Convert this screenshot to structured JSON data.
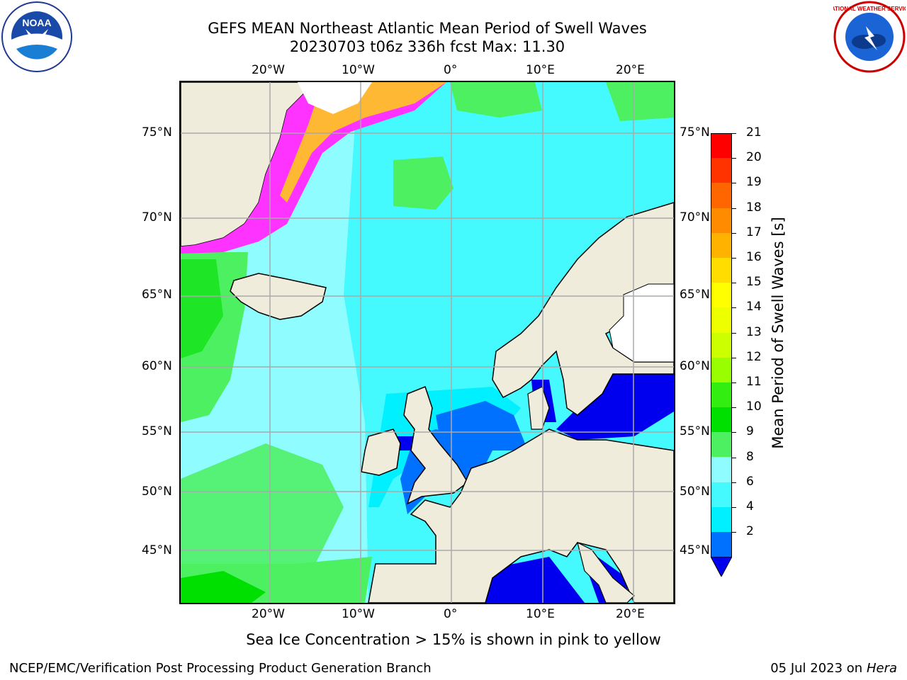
{
  "title": {
    "line1": "GEFS MEAN Northeast Atlantic Mean Period of Swell Waves",
    "line2": "20230703 t06z 336h fcst   Max: 11.30"
  },
  "logos": {
    "left": {
      "icon": "noaa-logo-icon",
      "text": "NOAA"
    },
    "right": {
      "icon": "nws-logo-icon",
      "text": "NATIONAL WEATHER SERVICE"
    }
  },
  "map": {
    "lon_labels": [
      "20°W",
      "10°W",
      "0°",
      "10°E",
      "20°E"
    ],
    "lat_labels": [
      "75°N",
      "70°N",
      "65°N",
      "60°N",
      "55°N",
      "50°N",
      "45°N"
    ],
    "colors": {
      "land": "#efecdc",
      "ice_white": "#ffffff",
      "ice_pink": "#ff33ff",
      "ice_orange": "#ffb833",
      "grid": "#aaaaaa"
    }
  },
  "colorbar": {
    "label": "Mean Period of Swell Waves [s]",
    "ticks": [
      "21",
      "20",
      "19",
      "18",
      "17",
      "16",
      "15",
      "14",
      "13",
      "12",
      "11",
      "10",
      "9",
      "8",
      "6",
      "4",
      "2"
    ],
    "colors": [
      "#ff0000",
      "#ff3300",
      "#ff6600",
      "#ff8c00",
      "#ffb300",
      "#ffdd00",
      "#ffff00",
      "#eeff00",
      "#ccff00",
      "#99ff00",
      "#33ee11",
      "#00e000",
      "#4cf060",
      "#8ffcff",
      "#44faff",
      "#00f0ff",
      "#0070ff",
      "#0000ee"
    ]
  },
  "note": "Sea Ice Concentration > 15% is shown in pink to yellow",
  "footer": {
    "left": "NCEP/EMC/Verification Post Processing Product Generation Branch",
    "date": "05 Jul 2023 on ",
    "machine": "Hera"
  }
}
